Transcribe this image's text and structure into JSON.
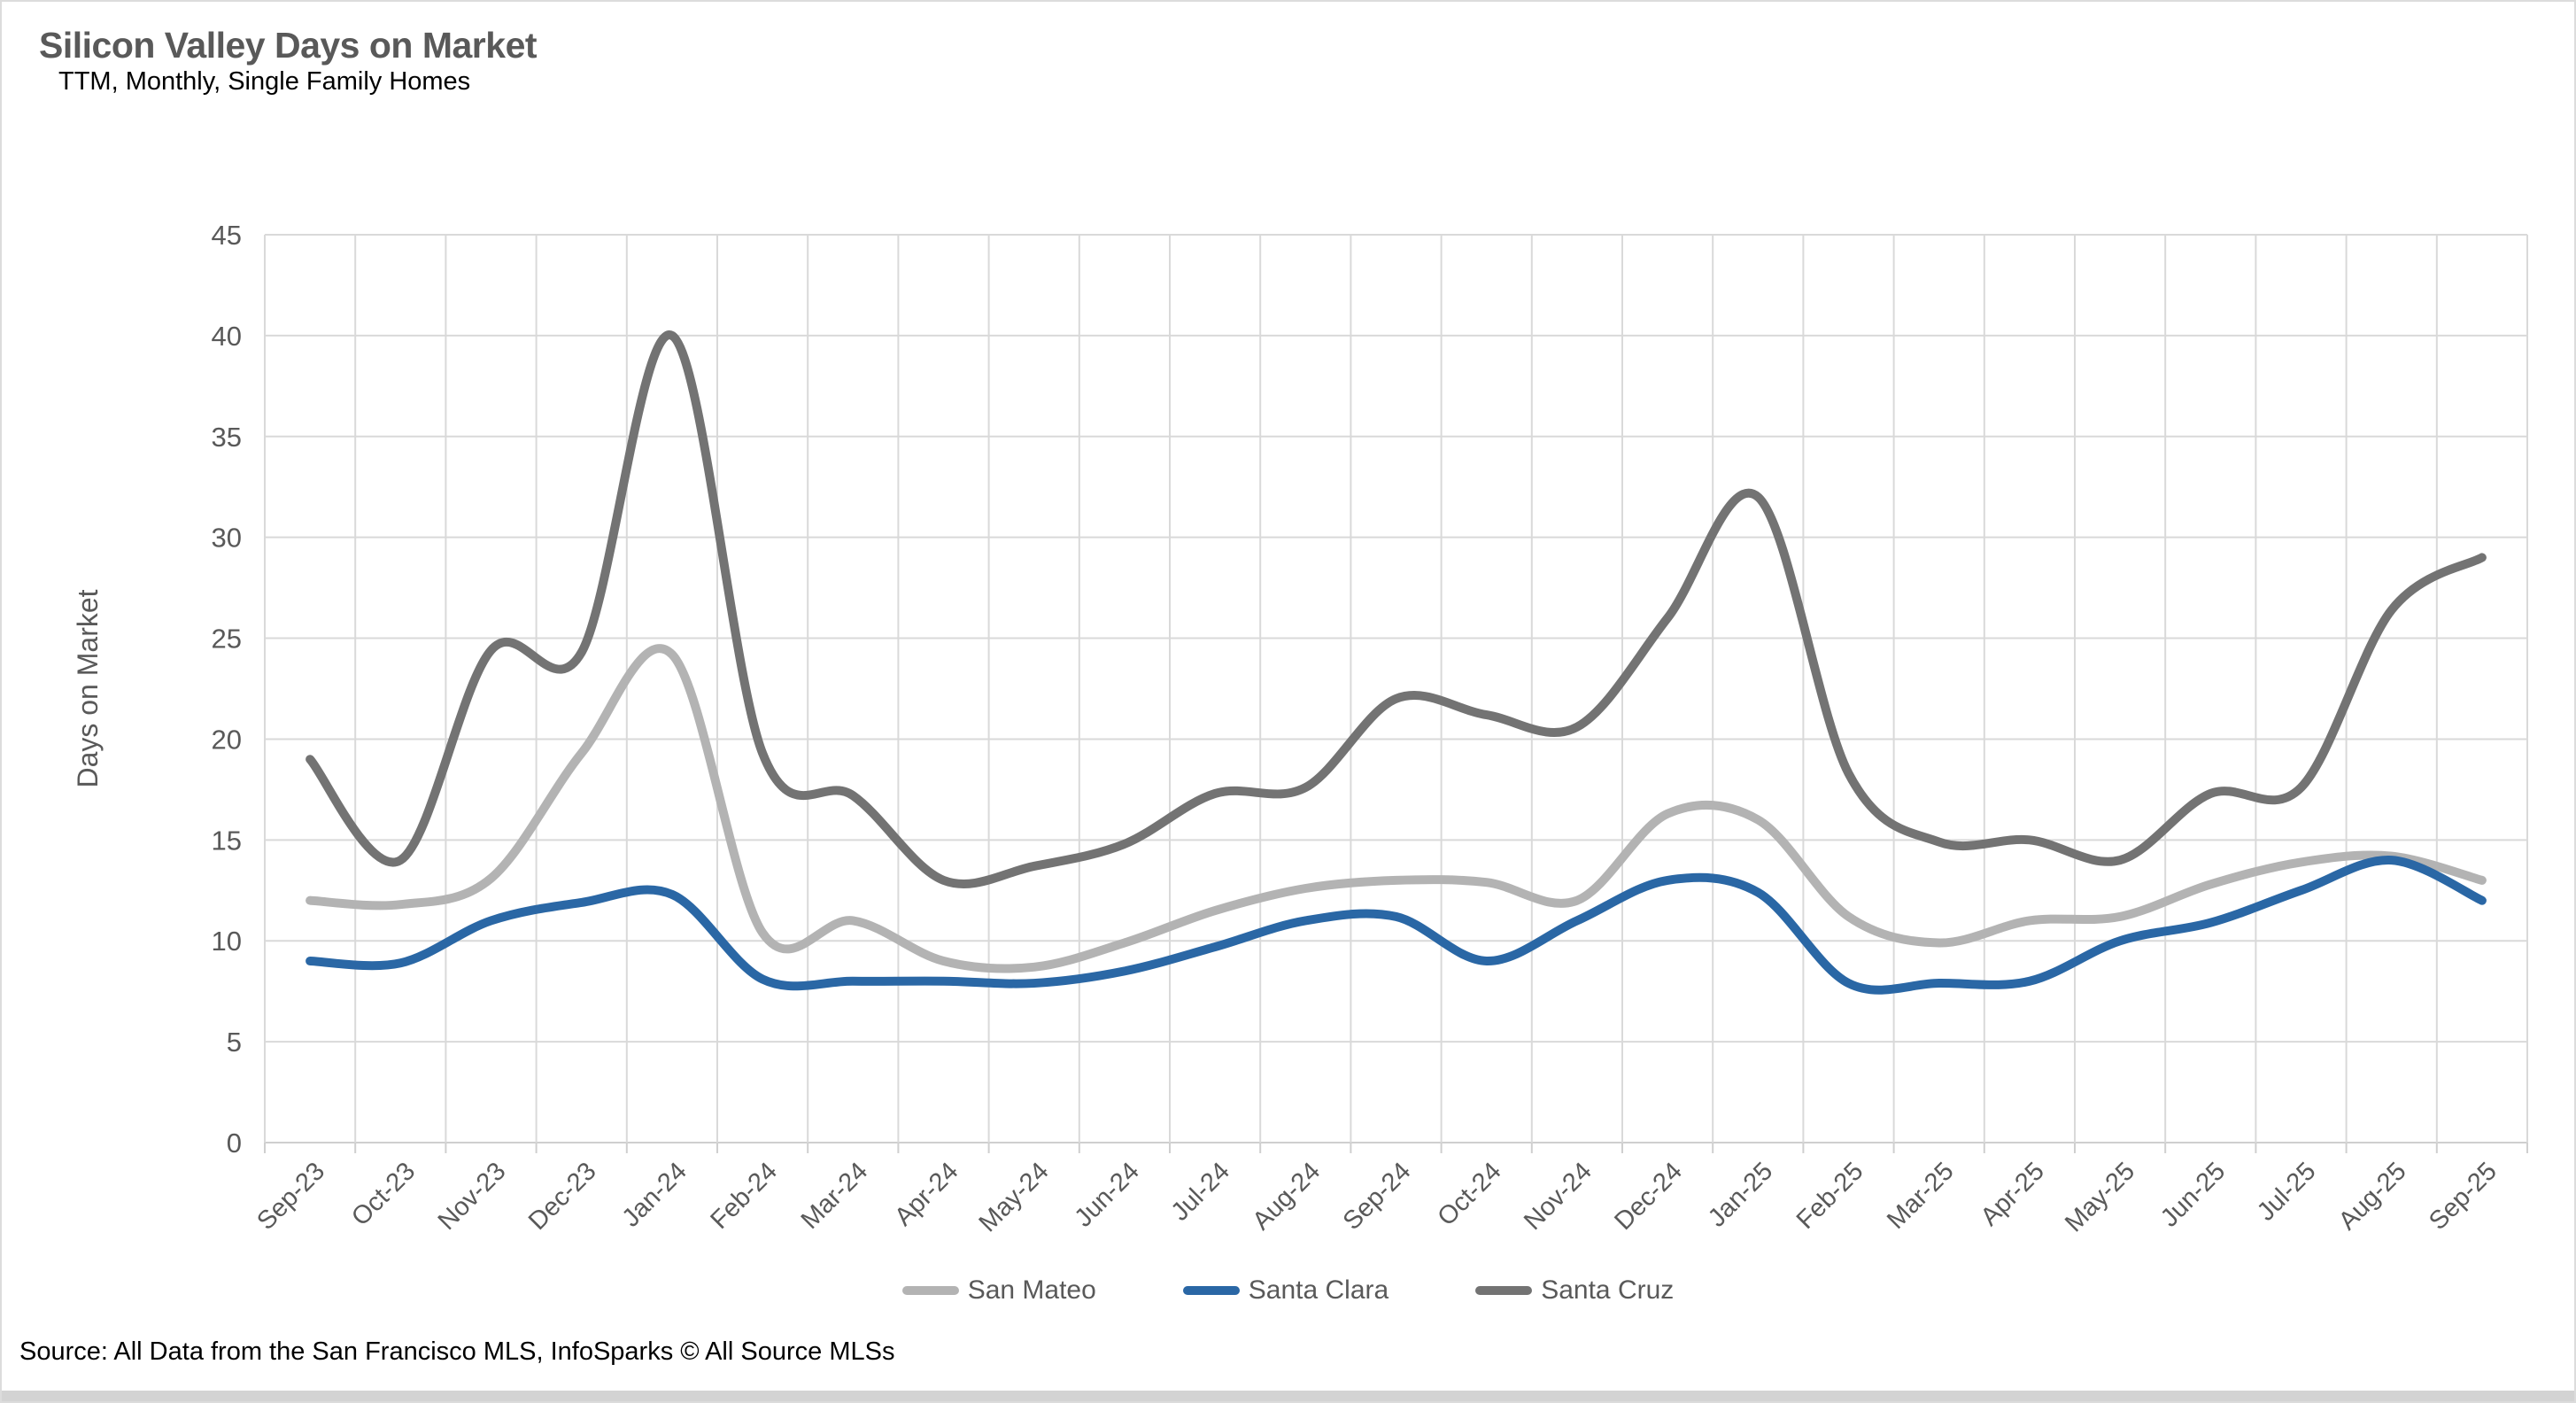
{
  "header": {
    "title": "Silicon Valley Days on Market",
    "subtitle": "TTM, Monthly, Single Family Homes"
  },
  "source": "Source: All Data from the San Francisco MLS, InfoSparks © All Source MLSs",
  "chart_data": {
    "type": "line",
    "title": "Silicon Valley Days on Market",
    "subtitle": "TTM, Monthly, Single Family Homes",
    "xlabel": "",
    "ylabel": "Days on Market",
    "ylim": [
      0,
      45
    ],
    "ytick_step": 5,
    "grid": true,
    "smooth": true,
    "legend_position": "bottom",
    "categories": [
      "Sep-23",
      "Oct-23",
      "Nov-23",
      "Dec-23",
      "Jan-24",
      "Feb-24",
      "Mar-24",
      "Apr-24",
      "May-24",
      "Jun-24",
      "Jul-24",
      "Aug-24",
      "Sep-24",
      "Oct-24",
      "Nov-24",
      "Dec-24",
      "Jan-25",
      "Feb-25",
      "Mar-25",
      "Apr-25",
      "May-25",
      "Jun-25",
      "Jul-25",
      "Aug-25",
      "Sep-25"
    ],
    "series": [
      {
        "name": "San Mateo",
        "color": "#b3b3b3",
        "values": [
          12,
          11.8,
          13.1,
          19.3,
          24.2,
          10.4,
          11,
          9,
          8.7,
          9.9,
          11.5,
          12.6,
          13,
          12.9,
          12,
          16.3,
          16,
          11.2,
          9.9,
          11,
          11.2,
          12.8,
          13.9,
          14.2,
          13
        ]
      },
      {
        "name": "Santa Clara",
        "color": "#2a67a5",
        "values": [
          9,
          8.9,
          11,
          11.9,
          12.3,
          8.1,
          8,
          8,
          7.9,
          8.5,
          9.7,
          11,
          11.2,
          9,
          11,
          13,
          12.4,
          7.9,
          7.9,
          8,
          10,
          10.9,
          12.5,
          14,
          12
        ]
      },
      {
        "name": "Santa Cruz",
        "color": "#737373",
        "values": [
          19,
          14,
          24.4,
          24.3,
          40,
          19.3,
          17.2,
          13,
          13.7,
          14.8,
          17.3,
          17.6,
          22,
          21.2,
          20.6,
          26,
          32,
          18.3,
          14.9,
          15,
          14,
          17.3,
          17.6,
          26.4,
          29
        ]
      }
    ],
    "axis_text_color": "#595959",
    "gridline_color": "#d9d9d9",
    "axis_line_color": "#cfcfcf"
  }
}
